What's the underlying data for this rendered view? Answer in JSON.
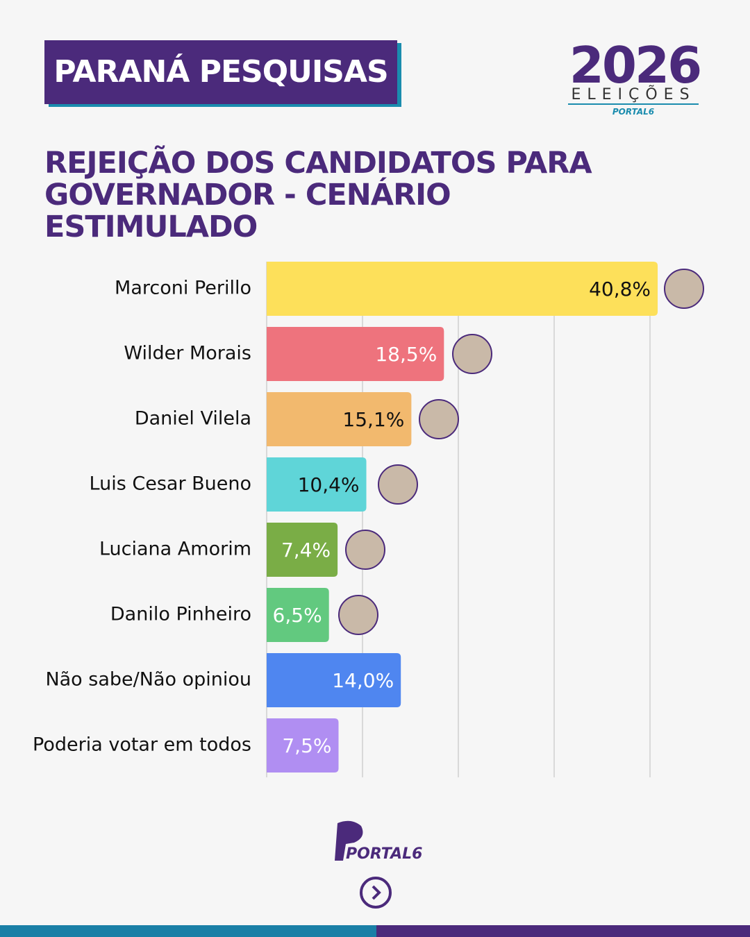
{
  "header": {
    "badge": "PARANÁ PESQUISAS",
    "logo_year": "2026",
    "logo_text": "ELEIÇÕES",
    "logo_brand": "PORTAL6"
  },
  "footer": {
    "brand": "PORTAL6"
  },
  "chart_data": {
    "type": "hbar",
    "title": "REJEIÇÃO DOS CANDIDATOS PARA GOVERNADOR - CENÁRIO ESTIMULADO",
    "categories": [
      "Marconi Perillo",
      "Wilder Morais",
      "Daniel Vilela",
      "Luis Cesar Bueno",
      "Luciana Amorim",
      "Danilo Pinheiro",
      "Não sabe/Não opiniou",
      "Poderia votar em todos"
    ],
    "values": [
      40.8,
      18.5,
      15.1,
      10.4,
      7.4,
      6.5,
      14.0,
      7.5
    ],
    "value_labels": [
      "40,8%",
      "18,5%",
      "15,1%",
      "10,4%",
      "7,4%",
      "6,5%",
      "14,0%",
      "7,5%"
    ],
    "colors": [
      "#fde05a",
      "#ee737d",
      "#f2b96e",
      "#5fd5d8",
      "#7aad46",
      "#62c97f",
      "#4f86f0",
      "#b08ef2"
    ],
    "xlim": [
      0,
      50
    ],
    "xticks": [
      0,
      10,
      20,
      30,
      40
    ],
    "grid": true
  }
}
